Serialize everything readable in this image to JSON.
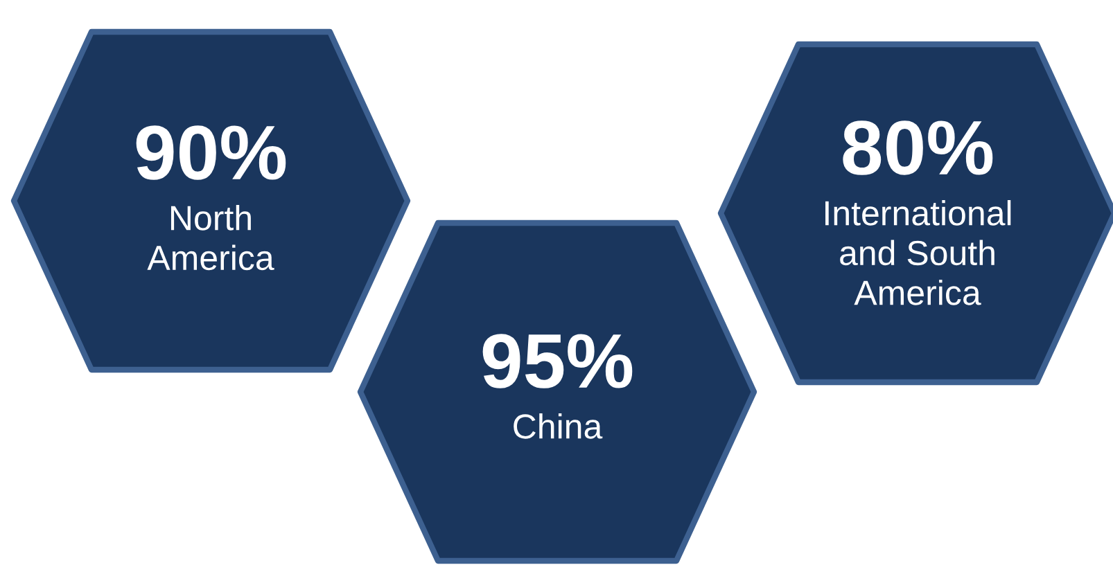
{
  "chart_data": {
    "type": "other",
    "categories": [
      "North\nAmerica",
      "China",
      "International\nand South\nAmerica"
    ],
    "values": [
      90,
      95,
      80
    ],
    "value_labels": [
      "90%",
      "95%",
      "80%"
    ],
    "colors": [
      "#1a365d",
      "#1a365d",
      "#1a365d"
    ]
  }
}
